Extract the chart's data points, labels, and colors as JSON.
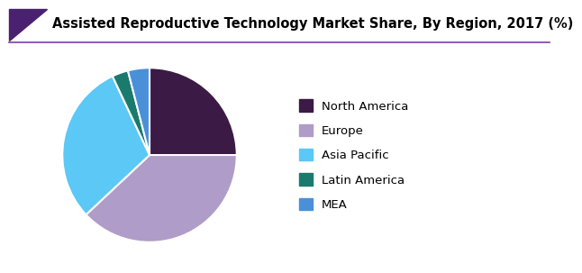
{
  "title": "Assisted Reproductive Technology Market Share, By Region, 2017 (%)",
  "labels": [
    "North America",
    "Europe",
    "Asia Pacific",
    "Latin America",
    "MEA"
  ],
  "values": [
    25,
    38,
    30,
    3,
    4
  ],
  "colors": [
    "#3b1a45",
    "#b09cc8",
    "#5bc8f5",
    "#1a7a6e",
    "#4a90d9"
  ],
  "startangle": 90,
  "title_fontsize": 10.5,
  "legend_fontsize": 9.5,
  "background_color": "#ffffff",
  "title_color": "#000000",
  "header_line_color": "#7b3fa0",
  "triangle_color": "#4a2070"
}
